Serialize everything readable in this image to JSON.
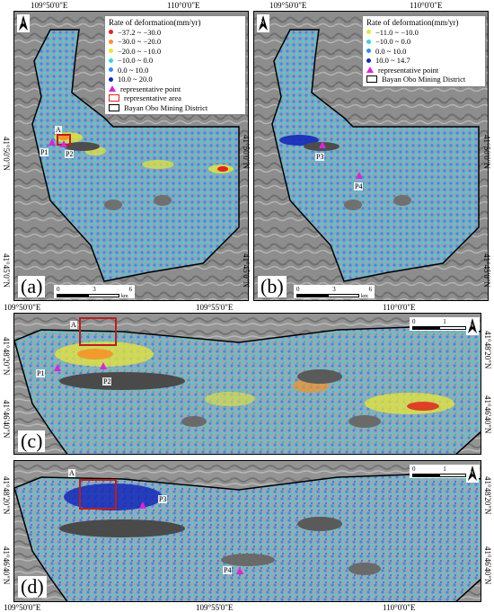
{
  "coords": {
    "lon_50": "109°50'0\"E",
    "lon_55": "109°55'0\"E",
    "lon_60": "110°0'0\"E",
    "lat_50": "41°50'0\"N",
    "lat_45": "41°45'0\"N",
    "lat_4820": "41°48'20\"N",
    "lat_4640": "41°46'40\"N"
  },
  "panel_a": {
    "letter": "(a)",
    "legend_title": "Rate of deformation(mm/yr)",
    "classes": [
      {
        "label": "−37.2 ~ −30.0",
        "color": "#e0241c"
      },
      {
        "label": "−30.0 ~ −20.0",
        "color": "#f5932a"
      },
      {
        "label": "−20.0 ~ −10.0",
        "color": "#e8e53a"
      },
      {
        "label": "−10.0 ~ 0.0",
        "color": "#3ed2d2"
      },
      {
        "label": "0.0 ~ 10.0",
        "color": "#3a8de6"
      },
      {
        "label": "10.0 ~ 20.0",
        "color": "#1628b8"
      }
    ],
    "rep_point": "representative point",
    "rep_area": "representative area",
    "district": "Bayan Obo Mining District",
    "scale_labels": [
      "0",
      "3",
      "6"
    ],
    "scale_unit": "km",
    "points": [
      "A",
      "P1",
      "P2"
    ]
  },
  "panel_b": {
    "letter": "(b)",
    "legend_title": "Rate of deformation(mm/yr)",
    "classes": [
      {
        "label": "−11.0 ~ −10.0",
        "color": "#e8e53a"
      },
      {
        "label": "−10.0 ~ 0.0",
        "color": "#3ed2d2"
      },
      {
        "label": "0.0 ~ 10.0",
        "color": "#3a8de6"
      },
      {
        "label": "10.0 ~ 14.7",
        "color": "#1628b8"
      }
    ],
    "rep_point": "representative point",
    "district": "Bayan Obo Mining District",
    "scale_labels": [
      "0",
      "3",
      "6"
    ],
    "scale_unit": "km",
    "points": [
      "P3",
      "P4"
    ]
  },
  "panel_c": {
    "letter": "(c)",
    "scale_labels": [
      "0",
      "1",
      "2"
    ],
    "scale_unit": "km",
    "points": [
      "A",
      "P1",
      "P2"
    ]
  },
  "panel_d": {
    "letter": "(d)",
    "scale_labels": [
      "0",
      "1",
      "2"
    ],
    "scale_unit": "km",
    "points": [
      "A",
      "P3",
      "P4"
    ]
  },
  "north_symbol": "N",
  "colors": {
    "red": "#e0241c",
    "orange": "#f5932a",
    "yellow": "#e8e53a",
    "cyan": "#3ed2d2",
    "blue": "#3a8de6",
    "navy": "#1628b8",
    "magenta": "#d22bd2",
    "area_red": "#b72020"
  }
}
